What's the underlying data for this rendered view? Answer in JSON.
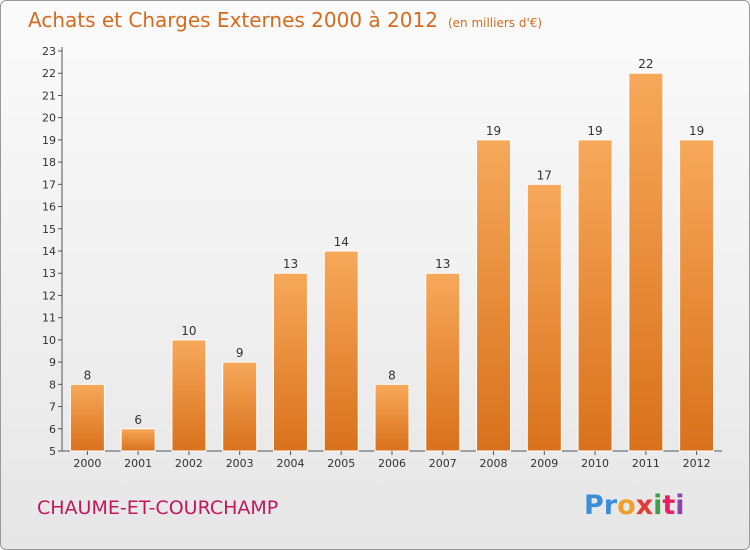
{
  "header": {
    "title": "Achats et Charges Externes 2000 à 2012",
    "unit": "(en milliers d'€)"
  },
  "footer": {
    "commune": "CHAUME-ET-COURCHAMP",
    "logo_text": "Proxiti",
    "logo_letters": [
      {
        "char": "P",
        "color": "#3a8fd8"
      },
      {
        "char": "r",
        "color": "#3a8fd8"
      },
      {
        "char": "o",
        "color": "#f0a02a"
      },
      {
        "char": "x",
        "color": "#e53935"
      },
      {
        "char": "i",
        "color": "#43a047"
      },
      {
        "char": "t",
        "color": "#e91e63"
      },
      {
        "char": "i",
        "color": "#8e44ad"
      }
    ]
  },
  "chart_data": {
    "type": "bar",
    "title": "Achats et Charges Externes 2000 à 2012",
    "subtitle": "(en milliers d'€)",
    "xlabel": "",
    "ylabel": "",
    "categories": [
      "2000",
      "2001",
      "2002",
      "2003",
      "2004",
      "2005",
      "2006",
      "2007",
      "2008",
      "2009",
      "2010",
      "2011",
      "2012"
    ],
    "values": [
      8,
      6,
      10,
      9,
      13,
      14,
      8,
      13,
      19,
      17,
      19,
      22,
      19
    ],
    "ylim": [
      5,
      23
    ],
    "yticks": [
      5,
      6,
      7,
      8,
      9,
      10,
      11,
      12,
      13,
      14,
      15,
      16,
      17,
      18,
      19,
      20,
      21,
      22,
      23
    ],
    "grid": false,
    "legend": "none",
    "colors": {
      "bar_light": "#f7a85a",
      "bar_dark": "#d9711c",
      "axis": "#555555",
      "tick": "#333333"
    }
  }
}
